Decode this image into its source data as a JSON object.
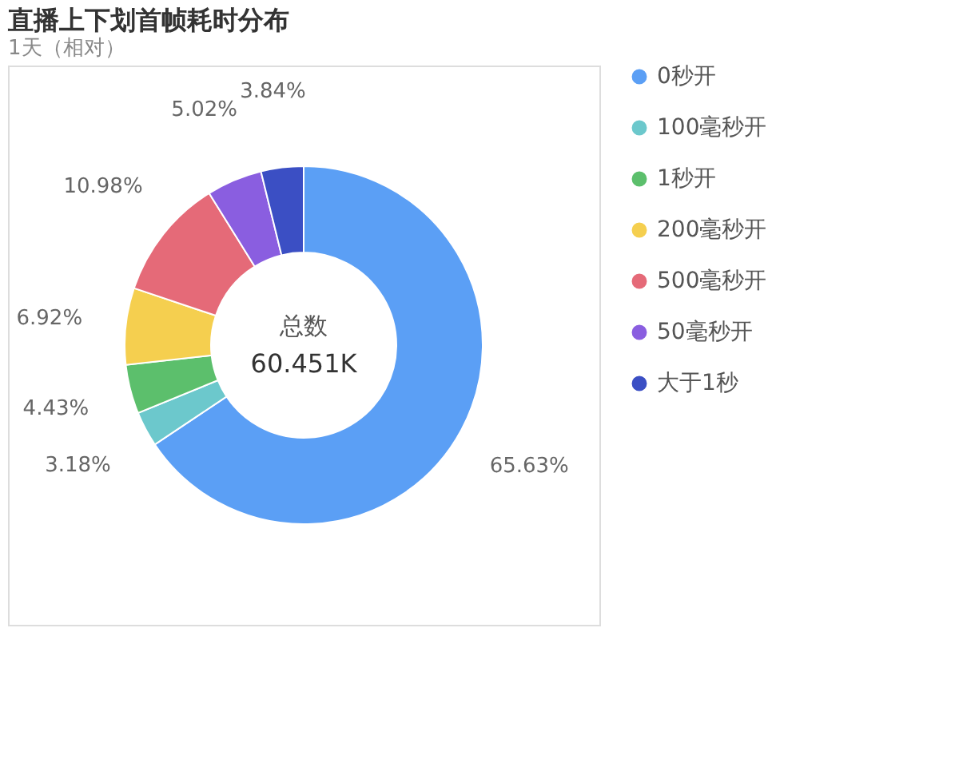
{
  "chart_data": {
    "type": "donut",
    "title": "直播上下划首帧耗时分布",
    "subtitle": "1天（相对）",
    "categories": [
      "0秒开",
      "100毫秒开",
      "1秒开",
      "200毫秒开",
      "500毫秒开",
      "50毫秒开",
      "大于1秒"
    ],
    "values": [
      65.63,
      3.18,
      4.43,
      6.92,
      10.98,
      5.02,
      3.84
    ],
    "colors": [
      "#5b9ff5",
      "#6cc8cc",
      "#5cbf6c",
      "#f5cf4f",
      "#e56a78",
      "#8a5ee0",
      "#3b4fc4"
    ],
    "value_labels": [
      "65.63%",
      "3.18%",
      "4.43%",
      "6.92%",
      "10.98%",
      "5.02%",
      "3.84%"
    ],
    "legend": "right",
    "annotations": [
      "总数",
      "60.451K"
    ]
  }
}
